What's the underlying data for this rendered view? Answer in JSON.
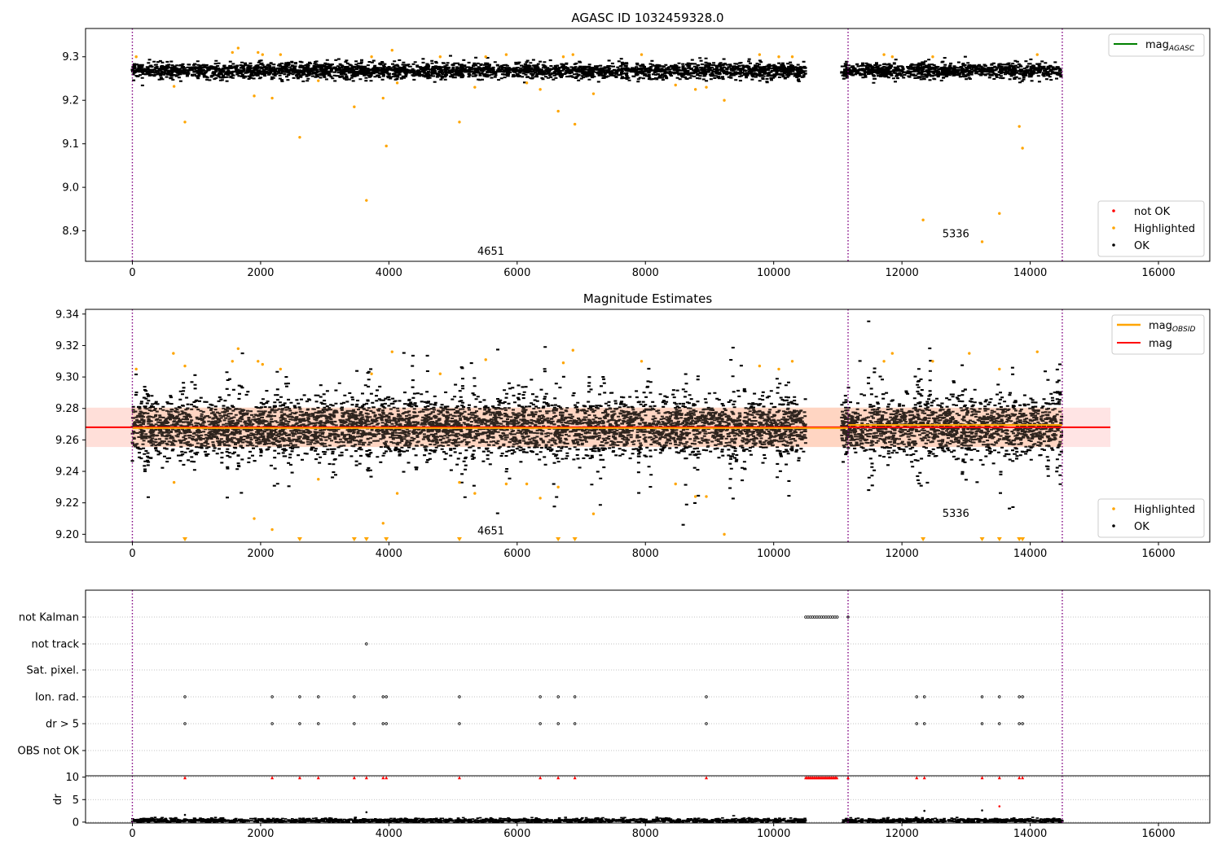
{
  "colors": {
    "ok": "#000000",
    "highlighted": "#ffa500",
    "not_ok": "#ff0000",
    "mag_agasc": "#008000",
    "mag_obsid": "#ffa500",
    "mag": "#ff0000",
    "band_fill": "#ffb3b3",
    "band_fill_obsid": "#ffc9a6",
    "obsid_divider": "#800080",
    "grid": "#b0b0b0"
  },
  "chart_data": [
    {
      "type": "scatter",
      "title": "AGASC ID 1032459328.0",
      "xlim": [
        -730,
        16800
      ],
      "ylim": [
        8.83,
        9.365
      ],
      "xticks": [
        0,
        2000,
        4000,
        6000,
        8000,
        10000,
        12000,
        14000,
        16000
      ],
      "xtick_labels": [
        "0",
        "2000",
        "4000",
        "6000",
        "8000",
        "10000",
        "12000",
        "14000",
        "16000"
      ],
      "yticks": [
        8.9,
        9.0,
        9.1,
        9.2,
        9.3
      ],
      "ytick_labels": [
        "8.9",
        "9.0",
        "9.1",
        "9.2",
        "9.3"
      ],
      "obsid_boundaries": [
        0,
        11160,
        14500
      ],
      "obsid_labels": [
        {
          "text": "4651",
          "x": 5590,
          "y": 8.845
        },
        {
          "text": "5336",
          "x": 12840,
          "y": 8.885
        }
      ],
      "ok_band": {
        "center": 9.268,
        "halfwidth": 0.012,
        "segments": [
          [
            0,
            10500
          ],
          [
            11100,
            14500
          ]
        ]
      },
      "highlighted": [
        [
          60,
          9.3
        ],
        [
          650,
          9.232
        ],
        [
          820,
          9.15
        ],
        [
          1560,
          9.31
        ],
        [
          1650,
          9.32
        ],
        [
          1900,
          9.21
        ],
        [
          1960,
          9.31
        ],
        [
          2030,
          9.305
        ],
        [
          2180,
          9.205
        ],
        [
          2310,
          9.305
        ],
        [
          2610,
          9.115
        ],
        [
          2900,
          9.245
        ],
        [
          3460,
          9.185
        ],
        [
          3650,
          8.97
        ],
        [
          3730,
          9.3
        ],
        [
          3910,
          9.205
        ],
        [
          3960,
          9.095
        ],
        [
          4050,
          9.315
        ],
        [
          4130,
          9.24
        ],
        [
          4800,
          9.3
        ],
        [
          5100,
          9.15
        ],
        [
          5340,
          9.23
        ],
        [
          5510,
          9.3
        ],
        [
          5830,
          9.305
        ],
        [
          6150,
          9.24
        ],
        [
          6360,
          9.225
        ],
        [
          6640,
          9.175
        ],
        [
          6720,
          9.3
        ],
        [
          6870,
          9.305
        ],
        [
          6900,
          9.145
        ],
        [
          7190,
          9.215
        ],
        [
          7940,
          9.305
        ],
        [
          8470,
          9.235
        ],
        [
          8780,
          9.225
        ],
        [
          8950,
          9.23
        ],
        [
          9230,
          9.2
        ],
        [
          9780,
          9.305
        ],
        [
          10080,
          9.3
        ],
        [
          10290,
          9.3
        ],
        [
          11720,
          9.305
        ],
        [
          11850,
          9.3
        ],
        [
          12330,
          8.925
        ],
        [
          12480,
          9.3
        ],
        [
          13250,
          8.875
        ],
        [
          13520,
          8.94
        ],
        [
          13830,
          9.14
        ],
        [
          13880,
          9.09
        ],
        [
          14110,
          9.305
        ]
      ],
      "not_ok": [],
      "legend_entries": [
        {
          "label": "mag",
          "subscript": "AGASC",
          "kind": "line",
          "color_key": "mag_agasc"
        },
        {
          "label": "not OK",
          "kind": "marker",
          "color_key": "not_ok"
        },
        {
          "label": "Highlighted",
          "kind": "marker",
          "color_key": "highlighted"
        },
        {
          "label": "OK",
          "kind": "marker",
          "color_key": "ok"
        }
      ]
    },
    {
      "type": "scatter",
      "title": "Magnitude Estimates",
      "xlim": [
        -730,
        16800
      ],
      "ylim": [
        9.195,
        9.343
      ],
      "xticks": [
        0,
        2000,
        4000,
        6000,
        8000,
        10000,
        12000,
        14000,
        16000
      ],
      "xtick_labels": [
        "0",
        "2000",
        "4000",
        "6000",
        "8000",
        "10000",
        "12000",
        "14000",
        "16000"
      ],
      "yticks": [
        9.2,
        9.22,
        9.24,
        9.26,
        9.28,
        9.3,
        9.32,
        9.34
      ],
      "ytick_labels": [
        "9.20",
        "9.22",
        "9.24",
        "9.26",
        "9.28",
        "9.30",
        "9.32",
        "9.34"
      ],
      "obsid_boundaries": [
        0,
        11160,
        14500
      ],
      "obsid_labels": [
        {
          "text": "4651",
          "x": 5590,
          "y": 9.2
        },
        {
          "text": "5336",
          "x": 12840,
          "y": 9.211
        }
      ],
      "mag_line": {
        "value": 9.268,
        "x_range": [
          -730,
          15250
        ]
      },
      "mag_band": {
        "low": 9.2555,
        "high": 9.2805,
        "x_range": [
          -730,
          15250
        ]
      },
      "mag_obsid": [
        {
          "x_range": [
            0,
            11160
          ],
          "value": 9.2675
        },
        {
          "x_range": [
            11160,
            14500
          ],
          "value": 9.2695
        }
      ],
      "highlighted": [
        [
          60,
          9.305
        ],
        [
          650,
          9.233
        ],
        [
          640,
          9.315
        ],
        [
          820,
          9.307
        ],
        [
          1560,
          9.31
        ],
        [
          1650,
          9.318
        ],
        [
          1900,
          9.21
        ],
        [
          1960,
          9.31
        ],
        [
          2030,
          9.308
        ],
        [
          2180,
          9.203
        ],
        [
          2310,
          9.305
        ],
        [
          2900,
          9.235
        ],
        [
          3730,
          9.302
        ],
        [
          3910,
          9.207
        ],
        [
          4050,
          9.316
        ],
        [
          4130,
          9.226
        ],
        [
          4800,
          9.302
        ],
        [
          5100,
          9.233
        ],
        [
          5340,
          9.226
        ],
        [
          5510,
          9.311
        ],
        [
          5830,
          9.232
        ],
        [
          6150,
          9.232
        ],
        [
          6360,
          9.223
        ],
        [
          6640,
          9.23
        ],
        [
          6720,
          9.309
        ],
        [
          6870,
          9.317
        ],
        [
          7190,
          9.213
        ],
        [
          7940,
          9.31
        ],
        [
          8470,
          9.232
        ],
        [
          8780,
          9.224
        ],
        [
          8950,
          9.224
        ],
        [
          9230,
          9.2
        ],
        [
          9780,
          9.307
        ],
        [
          10080,
          9.305
        ],
        [
          10290,
          9.31
        ],
        [
          11720,
          9.31
        ],
        [
          11850,
          9.315
        ],
        [
          12480,
          9.31
        ],
        [
          13050,
          9.315
        ],
        [
          13520,
          9.305
        ],
        [
          14110,
          9.316
        ]
      ],
      "below_limit": [
        820,
        2610,
        3460,
        3650,
        3960,
        5100,
        6640,
        6900,
        12330,
        13250,
        13520,
        13830,
        13880
      ],
      "legend_entries": [
        {
          "label": "mag",
          "subscript": "OBSID",
          "kind": "line",
          "color_key": "mag_obsid"
        },
        {
          "label": "mag",
          "kind": "line",
          "color_key": "mag"
        },
        {
          "label": "Highlighted",
          "kind": "marker",
          "color_key": "highlighted"
        },
        {
          "label": "OK",
          "kind": "marker",
          "color_key": "ok"
        }
      ]
    },
    {
      "type": "scatter",
      "title": "",
      "xlim": [
        -730,
        16800
      ],
      "flag_labels": [
        "not Kalman",
        "not track",
        "Sat. pixel.",
        "Ion. rad.",
        "dr > 5",
        "OBS not OK"
      ],
      "flags": {
        "not Kalman": {
          "ranges": [
            [
              10500,
              11000
            ]
          ],
          "points": [
            11160
          ]
        },
        "not track": {
          "ranges": [],
          "points": [
            3650
          ]
        },
        "Sat. pixel.": {
          "ranges": [],
          "points": []
        },
        "Ion. rad.": {
          "ranges": [],
          "points": [
            820,
            2180,
            2610,
            2900,
            3460,
            3910,
            3960,
            5100,
            6360,
            6640,
            6900,
            8950,
            12230,
            12350,
            13250,
            13520,
            13830,
            13880
          ]
        },
        "dr > 5": {
          "ranges": [],
          "points": [
            820,
            2180,
            2610,
            2900,
            3460,
            3910,
            3960,
            5100,
            6360,
            6640,
            6900,
            8950,
            12230,
            12350,
            13250,
            13520,
            13830,
            13880
          ]
        },
        "OBS not OK": {
          "ranges": [],
          "points": []
        }
      },
      "obsid_boundaries": [
        0,
        11160,
        14500
      ]
    },
    {
      "type": "scatter",
      "title": "",
      "xlim": [
        -730,
        16800
      ],
      "ylim": [
        -0.2,
        10.3
      ],
      "ylabel": "dr",
      "xticks": [
        0,
        2000,
        4000,
        6000,
        8000,
        10000,
        12000,
        14000,
        16000
      ],
      "xtick_labels": [
        "0",
        "2000",
        "4000",
        "6000",
        "8000",
        "10000",
        "12000",
        "14000",
        "16000"
      ],
      "yticks": [
        0,
        5,
        10
      ],
      "ytick_labels": [
        "0",
        "5",
        "10"
      ],
      "obsid_boundaries": [
        0,
        11160,
        14500
      ],
      "clipped_points": [
        820,
        2180,
        2610,
        2900,
        3460,
        3650,
        3910,
        3960,
        5100,
        6360,
        6640,
        6900,
        8950,
        11160,
        12230,
        12350,
        13250,
        13520,
        13830,
        13880
      ],
      "clipped_range": [
        10500,
        11000
      ],
      "outliers": [
        [
          820,
          1.6
        ],
        [
          3650,
          2.2
        ],
        [
          12350,
          2.5
        ],
        [
          13250,
          2.6
        ],
        [
          13520,
          3.5
        ]
      ]
    }
  ]
}
